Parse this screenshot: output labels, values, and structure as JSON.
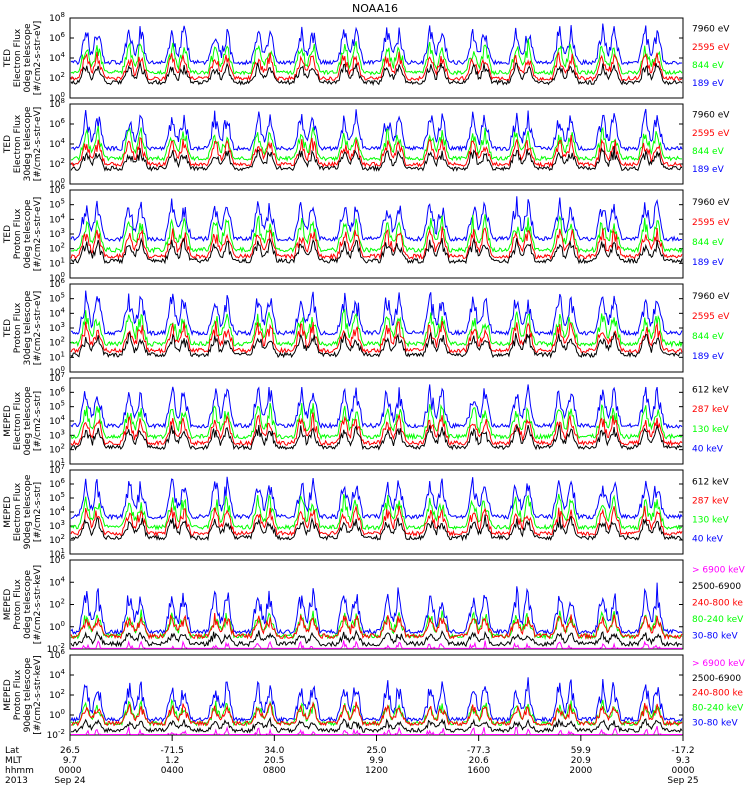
{
  "title": "NOAA16",
  "colors": {
    "blue": "#0000ff",
    "red": "#ff0000",
    "green": "#00ff00",
    "black": "#000000",
    "magenta": "#ff00ff"
  },
  "chart_data": [
    {
      "type": "line",
      "ylabel_lines": [
        "TED",
        "Electron Flux",
        "0deg telescope",
        "[#/cm2-s-str-eV]"
      ],
      "y_log_range": [
        0,
        8
      ],
      "tick_exponents": [
        0,
        2,
        4,
        6,
        8
      ],
      "series": [
        {
          "name": "7960 eV",
          "color": "black"
        },
        {
          "name": "2595 eV",
          "color": "red"
        },
        {
          "name": "844 eV",
          "color": "green"
        },
        {
          "name": "189 eV",
          "color": "blue"
        }
      ]
    },
    {
      "type": "line",
      "ylabel_lines": [
        "TED",
        "Electron Flux",
        "30deg telescope",
        "[#/cm2-s-str-eV]"
      ],
      "y_log_range": [
        0,
        8
      ],
      "tick_exponents": [
        0,
        2,
        4,
        6,
        8
      ],
      "series": [
        {
          "name": "7960 eV",
          "color": "black"
        },
        {
          "name": "2595 eV",
          "color": "red"
        },
        {
          "name": "844 eV",
          "color": "green"
        },
        {
          "name": "189 eV",
          "color": "blue"
        }
      ]
    },
    {
      "type": "line",
      "ylabel_lines": [
        "TED",
        "Proton Flux",
        "0deg telescope",
        "[#/cm2-s-str-eV]"
      ],
      "y_log_range": [
        0,
        6
      ],
      "tick_exponents": [
        0,
        1,
        2,
        3,
        4,
        5,
        6
      ],
      "series": [
        {
          "name": "7960 eV",
          "color": "black"
        },
        {
          "name": "2595 eV",
          "color": "red"
        },
        {
          "name": "844 eV",
          "color": "green"
        },
        {
          "name": "189 eV",
          "color": "blue"
        }
      ]
    },
    {
      "type": "line",
      "ylabel_lines": [
        "TED",
        "Proton Flux",
        "30deg telescope",
        "[#/cm2-s-str-eV]"
      ],
      "y_log_range": [
        0,
        6
      ],
      "tick_exponents": [
        0,
        1,
        2,
        3,
        4,
        5,
        6
      ],
      "series": [
        {
          "name": "7960 eV",
          "color": "black"
        },
        {
          "name": "2595 eV",
          "color": "red"
        },
        {
          "name": "844 eV",
          "color": "green"
        },
        {
          "name": "189 eV",
          "color": "blue"
        }
      ]
    },
    {
      "type": "line",
      "ylabel_lines": [
        "MEPED",
        "Electron Flux",
        "0deg telescope",
        "[#/cm2-s-str]"
      ],
      "y_log_range": [
        1,
        7
      ],
      "tick_exponents": [
        1,
        2,
        3,
        4,
        5,
        6,
        7
      ],
      "series": [
        {
          "name": "612 keV",
          "color": "black"
        },
        {
          "name": "287 keV",
          "color": "red"
        },
        {
          "name": "130 keV",
          "color": "green"
        },
        {
          "name": "40 keV",
          "color": "blue"
        }
      ]
    },
    {
      "type": "line",
      "ylabel_lines": [
        "MEPED",
        "Electron Flux",
        "90deg telescope",
        "[#/cm2-s-str]"
      ],
      "y_log_range": [
        1,
        7
      ],
      "tick_exponents": [
        1,
        2,
        3,
        4,
        5,
        6,
        7
      ],
      "series": [
        {
          "name": "612 keV",
          "color": "black"
        },
        {
          "name": "287 keV",
          "color": "red"
        },
        {
          "name": "130 keV",
          "color": "green"
        },
        {
          "name": "40 keV",
          "color": "blue"
        }
      ]
    },
    {
      "type": "line",
      "ylabel_lines": [
        "MEPED",
        "Proton Flux",
        "0deg telescope",
        "[#/cm2-s-str-keV]"
      ],
      "y_log_range": [
        -2,
        6
      ],
      "tick_exponents": [
        -2,
        0,
        2,
        4,
        6
      ],
      "series": [
        {
          "name": "> 6900 keV",
          "color": "magenta"
        },
        {
          "name": "2500-6900",
          "color": "black"
        },
        {
          "name": "240-800 ke",
          "color": "red"
        },
        {
          "name": "80-240 keV",
          "color": "green"
        },
        {
          "name": "30-80 keV",
          "color": "blue"
        }
      ]
    },
    {
      "type": "line",
      "ylabel_lines": [
        "MEPED",
        "Proton Flux",
        "90deg telescope",
        "[#/cm2-s-str-keV]"
      ],
      "y_log_range": [
        -2,
        6
      ],
      "tick_exponents": [
        -2,
        0,
        2,
        4,
        6
      ],
      "series": [
        {
          "name": "> 6900 keV",
          "color": "magenta"
        },
        {
          "name": "2500-6900",
          "color": "black"
        },
        {
          "name": "240-800 ke",
          "color": "red"
        },
        {
          "name": "80-240 keV",
          "color": "green"
        },
        {
          "name": "30-80 keV",
          "color": "blue"
        }
      ]
    }
  ],
  "x_axis": {
    "row_labels": [
      "Lat",
      "MLT",
      "hhmm",
      "2013"
    ],
    "ticks": [
      {
        "lat": "26.5",
        "mlt": "9.7",
        "hhmm": "0000",
        "date": "Sep 24"
      },
      {
        "lat": "-71.5",
        "mlt": "1.2",
        "hhmm": "0400",
        "date": ""
      },
      {
        "lat": "34.0",
        "mlt": "20.5",
        "hhmm": "0800",
        "date": ""
      },
      {
        "lat": "25.0",
        "mlt": "9.9",
        "hhmm": "1200",
        "date": ""
      },
      {
        "lat": "-77.3",
        "mlt": "20.6",
        "hhmm": "1600",
        "date": ""
      },
      {
        "lat": "59.9",
        "mlt": "20.9",
        "hhmm": "2000",
        "date": ""
      },
      {
        "lat": "-17.2",
        "mlt": "9.3",
        "hhmm": "0000",
        "date": "Sep 25"
      }
    ]
  }
}
